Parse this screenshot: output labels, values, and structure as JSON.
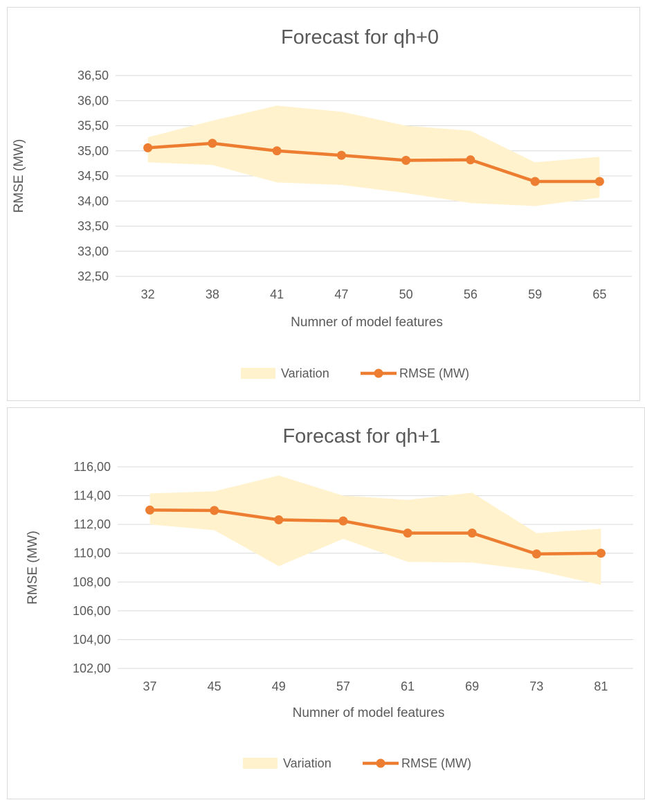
{
  "chart_data": [
    {
      "type": "line",
      "title": "Forecast for qh+0",
      "xlabel": "Numner of model features",
      "ylabel": "RMSE (MW)",
      "categories": [
        "32",
        "38",
        "41",
        "47",
        "50",
        "56",
        "59",
        "65"
      ],
      "yticks": [
        "32,50",
        "33,00",
        "33,50",
        "34,00",
        "34,50",
        "35,00",
        "35,50",
        "36,00",
        "36,50"
      ],
      "ylim": [
        32.5,
        36.5
      ],
      "grid": true,
      "legend_position": "bottom",
      "series": [
        {
          "name": "Variation",
          "kind": "band",
          "color": "#fff2cc",
          "upper": [
            35.27,
            35.6,
            35.9,
            35.78,
            35.5,
            35.4,
            34.77,
            34.88
          ],
          "lower": [
            34.77,
            34.72,
            34.37,
            34.32,
            34.16,
            33.96,
            33.9,
            34.07
          ]
        },
        {
          "name": "RMSE (MW)",
          "kind": "line",
          "color": "#ed7d31",
          "values": [
            35.06,
            35.15,
            35.0,
            34.91,
            34.81,
            34.82,
            34.39,
            34.39
          ]
        }
      ]
    },
    {
      "type": "line",
      "title": "Forecast for qh+1",
      "xlabel": "Numner of model features",
      "ylabel": "RMSE (MW)",
      "categories": [
        "37",
        "45",
        "49",
        "57",
        "61",
        "69",
        "73",
        "81"
      ],
      "yticks": [
        "102,00",
        "104,00",
        "106,00",
        "108,00",
        "110,00",
        "112,00",
        "114,00",
        "116,00"
      ],
      "ylim": [
        102,
        116
      ],
      "grid": true,
      "legend_position": "bottom",
      "series": [
        {
          "name": "Variation",
          "kind": "band",
          "color": "#fff2cc",
          "upper": [
            114.15,
            114.3,
            115.4,
            114.0,
            113.7,
            114.2,
            111.4,
            111.7
          ],
          "lower": [
            112.0,
            111.6,
            109.1,
            111.0,
            109.4,
            109.35,
            108.8,
            107.8
          ]
        },
        {
          "name": "RMSE (MW)",
          "kind": "line",
          "color": "#ed7d31",
          "values": [
            113.0,
            112.97,
            112.32,
            112.24,
            111.4,
            111.4,
            109.95,
            110.0
          ]
        }
      ]
    }
  ]
}
